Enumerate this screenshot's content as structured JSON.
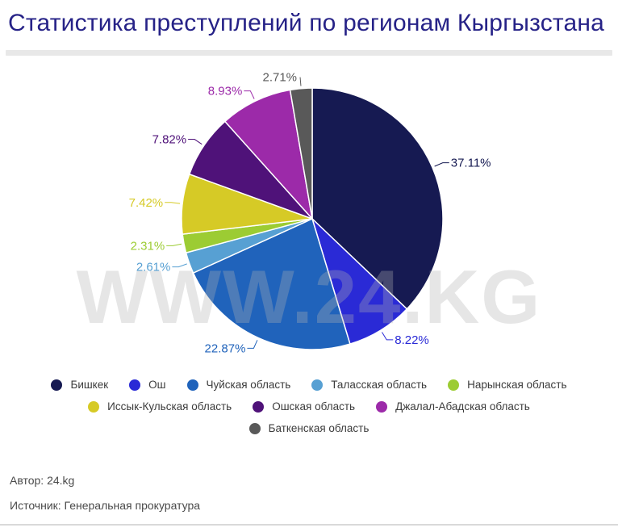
{
  "title": "Статистика преступлений по регионам Кыргызстана",
  "watermark": "WWW.24.KG",
  "footer": {
    "author": "Автор: 24.kg",
    "source": "Источник: Генеральная прокуратура"
  },
  "colors": {
    "title_text": "#262287",
    "legend_text": "#3c3c3c",
    "footer_text": "#4a4a4a",
    "divider": "#e8e8e8",
    "slice_border": "#ffffff"
  },
  "chart_data": {
    "type": "pie",
    "title": "Статистика преступлений по регионам Кыргызстана",
    "unit": "%",
    "direction": "clockwise",
    "start_angle_deg": 0,
    "legend_position": "bottom",
    "value_label_format": "{value}%",
    "slices": [
      {
        "label": "Бишкек",
        "value": 37.11,
        "color": "#161a52"
      },
      {
        "label": "Ош",
        "value": 8.22,
        "color": "#2a2ad6"
      },
      {
        "label": "Чуйская область",
        "value": 22.87,
        "color": "#2063bb"
      },
      {
        "label": "Таласская область",
        "value": 2.61,
        "color": "#57a0d3"
      },
      {
        "label": "Нарынская область",
        "value": 2.31,
        "color": "#9ccc33"
      },
      {
        "label": "Иссык-Кульская область",
        "value": 7.42,
        "color": "#d6ca26"
      },
      {
        "label": "Ошская область",
        "value": 7.82,
        "color": "#4f1279"
      },
      {
        "label": "Джалал-Абадская область",
        "value": 8.93,
        "color": "#9c2aa9"
      },
      {
        "label": "Баткенская область",
        "value": 2.71,
        "color": "#595959"
      }
    ]
  }
}
